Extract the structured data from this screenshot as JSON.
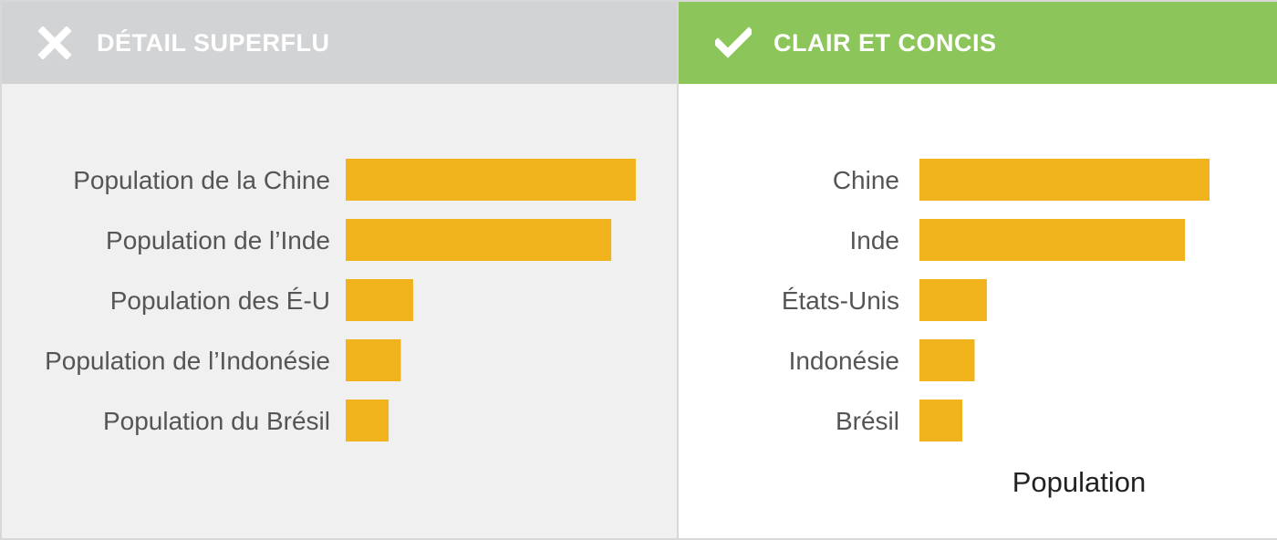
{
  "panels": {
    "bad": {
      "title": "DÉTAIL SUPERFLU",
      "icon": "cross-icon",
      "header_color": "#d2d3d5",
      "background_color": "#f0f0f0"
    },
    "good": {
      "title": "CLAIR ET CONCIS",
      "icon": "check-icon",
      "header_color": "#8cc65a",
      "background_color": "#ffffff"
    }
  },
  "chart_data": [
    {
      "type": "bar",
      "orientation": "horizontal",
      "title": "",
      "categories": [
        "Population de la Chine",
        "Population de l’Inde",
        "Population des É-U",
        "Population de l’Indonésie",
        "Population du Brésil"
      ],
      "values": [
        1420,
        1300,
        330,
        270,
        210
      ],
      "xlabel": "",
      "ylabel": "",
      "xlim": [
        0,
        1420
      ],
      "grid": false,
      "bar_color": "#f0b31c"
    },
    {
      "type": "bar",
      "orientation": "horizontal",
      "title": "",
      "categories": [
        "Chine",
        "Inde",
        "États-Unis",
        "Indonésie",
        "Brésil"
      ],
      "values": [
        1420,
        1300,
        330,
        270,
        210
      ],
      "xlabel": "Population",
      "ylabel": "",
      "xlim": [
        0,
        1420
      ],
      "grid": false,
      "bar_color": "#f0b31c"
    }
  ]
}
